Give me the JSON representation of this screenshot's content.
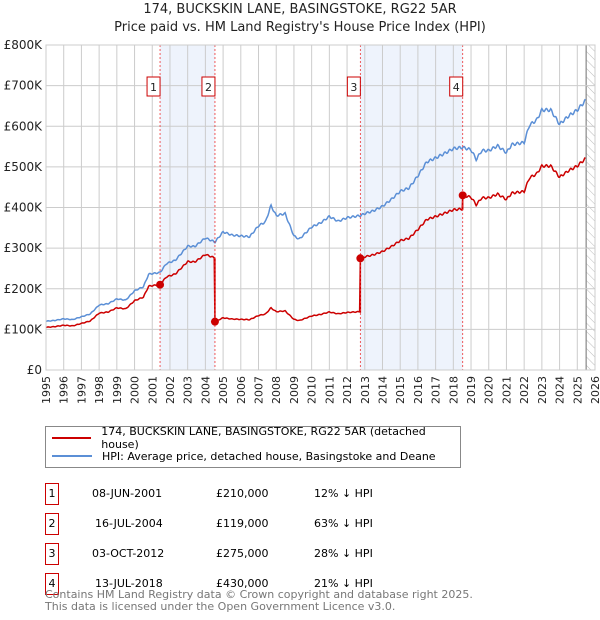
{
  "chart_data": {
    "type": "line",
    "title": "174, BUCKSKIN LANE, BASINGSTOKE, RG22 5AR",
    "subtitle": "Price paid vs. HM Land Registry's House Price Index (HPI)",
    "xlim": [
      1995,
      2026
    ],
    "ylim": [
      0,
      800000
    ],
    "x_ticks": [
      "1995",
      "1996",
      "1997",
      "1998",
      "1999",
      "2000",
      "2001",
      "2002",
      "2003",
      "2004",
      "2005",
      "2006",
      "2007",
      "2008",
      "2009",
      "2010",
      "2011",
      "2012",
      "2013",
      "2014",
      "2015",
      "2016",
      "2017",
      "2018",
      "2019",
      "2020",
      "2021",
      "2022",
      "2023",
      "2024",
      "2025",
      "2026"
    ],
    "y_ticks": [
      {
        "v": 0,
        "label": "£0"
      },
      {
        "v": 100000,
        "label": "£100K"
      },
      {
        "v": 200000,
        "label": "£200K"
      },
      {
        "v": 300000,
        "label": "£300K"
      },
      {
        "v": 400000,
        "label": "£400K"
      },
      {
        "v": 500000,
        "label": "£500K"
      },
      {
        "v": 600000,
        "label": "£600K"
      },
      {
        "v": 700000,
        "label": "£700K"
      },
      {
        "v": 800000,
        "label": "£800K"
      }
    ],
    "grid": true,
    "forecast_from": 2025.5,
    "series": [
      {
        "name": "174, BUCKSKIN LANE, BASINGSTOKE, RG22 5AR (detached house)",
        "color": "#cc0000",
        "derived_from": "hpi"
      },
      {
        "name": "HPI: Average price, detached house, Basingstoke and Deane",
        "color": "#5b8fd6",
        "x": [
          1995,
          1995.5,
          1996,
          1996.5,
          1997,
          1997.5,
          1998,
          1998.5,
          1999,
          1999.5,
          2000,
          2000.5,
          2000.8,
          2001.44,
          2001.8,
          2002.3,
          2003,
          2003.4,
          2004,
          2004.54,
          2005,
          2005.5,
          2006,
          2006.5,
          2007,
          2007.4,
          2007.7,
          2008,
          2008.5,
          2009,
          2009.3,
          2010,
          2010.5,
          2011,
          2011.5,
          2012,
          2012.75,
          2013,
          2013.5,
          2014,
          2014.5,
          2015,
          2015.5,
          2016,
          2016.5,
          2017,
          2017.5,
          2018,
          2018.53,
          2019,
          2019.3,
          2019.6,
          2020,
          2020.5,
          2021,
          2021.3,
          2022,
          2022.3,
          2022.7,
          2023,
          2023.5,
          2024,
          2024.5,
          2025,
          2025.5
        ],
        "y": [
          120000,
          122000,
          126000,
          124000,
          131000,
          138000,
          160000,
          163000,
          175000,
          172000,
          195000,
          205000,
          236000,
          240000,
          262000,
          270000,
          305000,
          304000,
          325000,
          315000,
          340000,
          332000,
          330000,
          328000,
          355000,
          365000,
          405000,
          380000,
          385000,
          330000,
          322000,
          352000,
          362000,
          378000,
          366000,
          375000,
          380000,
          385000,
          392000,
          403000,
          420000,
          440000,
          448000,
          478000,
          512000,
          522000,
          533000,
          545000,
          548000,
          542000,
          518000,
          540000,
          540000,
          552000,
          535000,
          555000,
          560000,
          603000,
          615000,
          640000,
          640000,
          605000,
          625000,
          640000,
          665000
        ]
      }
    ],
    "sales": [
      {
        "n": "1",
        "x": 2001.44,
        "date": "08-JUN-2001",
        "price": 210000,
        "price_label": "£210,000",
        "hpi_diff": "12% ↓ HPI"
      },
      {
        "n": "2",
        "x": 2004.54,
        "date": "16-JUL-2004",
        "price": 119000,
        "price_label": "£119,000",
        "hpi_diff": "63% ↓ HPI"
      },
      {
        "n": "3",
        "x": 2012.75,
        "date": "03-OCT-2012",
        "price": 275000,
        "price_label": "£275,000",
        "hpi_diff": "28% ↓ HPI"
      },
      {
        "n": "4",
        "x": 2018.53,
        "date": "13-JUL-2018",
        "price": 430000,
        "price_label": "£430,000",
        "hpi_diff": "21% ↓ HPI"
      }
    ],
    "shaded_ranges": [
      [
        2001.44,
        2004.54
      ],
      [
        2012.75,
        2018.53
      ]
    ]
  },
  "footer": {
    "line1": "Contains HM Land Registry data © Crown copyright and database right 2025.",
    "line2": "This data is licensed under the Open Government Licence v3.0."
  }
}
